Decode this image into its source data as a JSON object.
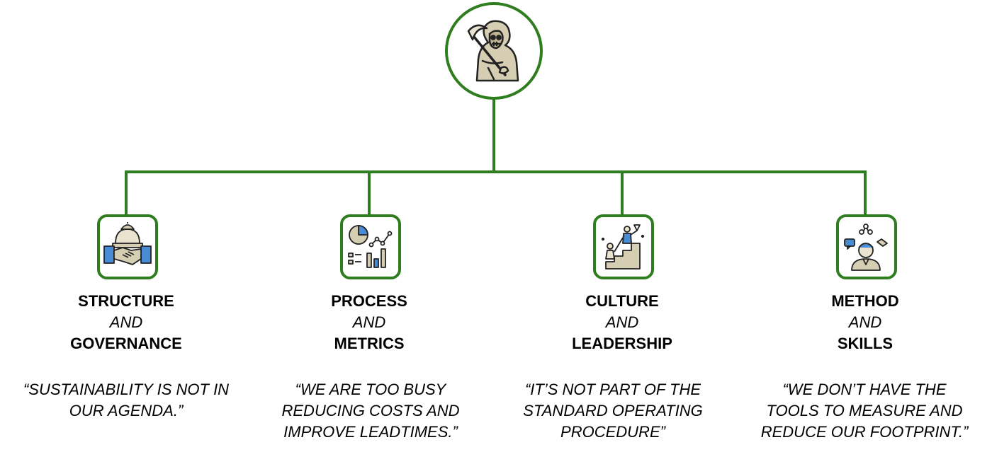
{
  "colors": {
    "accent": "#2e7d1e",
    "text": "#000000",
    "icon_fill": "#d6ceb3",
    "icon_stroke": "#222222"
  },
  "root": {
    "icon": "grim-reaper-icon"
  },
  "branches": [
    {
      "icon": "handshake-government-icon",
      "line1": "STRUCTURE",
      "connector": "AND",
      "line2": "GOVERNANCE",
      "quote_lines": [
        "“SUSTAINABILITY IS NOT IN",
        "OUR AGENDA.”"
      ]
    },
    {
      "icon": "metrics-charts-icon",
      "line1": "PROCESS",
      "connector": "AND",
      "line2": "METRICS",
      "quote_lines": [
        "“WE ARE TOO BUSY",
        "REDUCING COSTS AND",
        "IMPROVE LEADTIMES.”"
      ]
    },
    {
      "icon": "climbing-steps-icon",
      "line1": "CULTURE",
      "connector": "AND",
      "line2": "LEADERSHIP",
      "quote_lines": [
        "“IT’S NOT PART OF THE",
        "STANDARD OPERATING",
        "PROCEDURE”"
      ]
    },
    {
      "icon": "person-skills-icon",
      "line1": "METHOD",
      "connector": "AND",
      "line2": "SKILLS",
      "quote_lines": [
        "“WE DON’T HAVE THE",
        "TOOLS TO MEASURE AND",
        "REDUCE OUR FOOTPRINT.”"
      ]
    }
  ]
}
